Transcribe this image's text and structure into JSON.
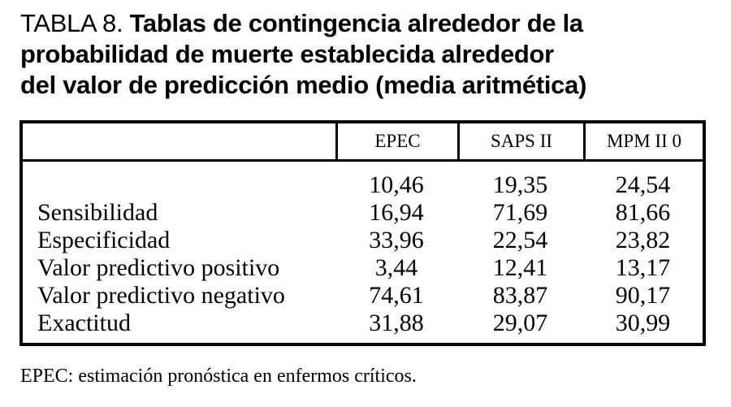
{
  "page": {
    "background": "#ffffff",
    "text_color": "#000000"
  },
  "title": {
    "prefix": "TABLA 8.",
    "line1_bold": "Tablas de contingencia alrededor de la",
    "line2_bold": "probabilidad de muerte establecida alrededor",
    "line3_bold": "del valor de predicción medio (media aritmética)"
  },
  "table": {
    "columns": [
      "",
      "EPEC",
      "SAPS II",
      "MPM II 0"
    ],
    "rows": [
      {
        "label": "",
        "values": [
          "10,46",
          "19,35",
          "24,54"
        ]
      },
      {
        "label": "Sensibilidad",
        "values": [
          "16,94",
          "71,69",
          "81,66"
        ]
      },
      {
        "label": "Especificidad",
        "values": [
          "33,96",
          "22,54",
          "23,82"
        ]
      },
      {
        "label": "Valor predictivo positivo",
        "values": [
          "3,44",
          "12,41",
          "13,17"
        ]
      },
      {
        "label": "Valor predictivo negativo",
        "values": [
          "74,61",
          "83,87",
          "90,17"
        ]
      },
      {
        "label": "Exactitud",
        "values": [
          "31,88",
          "29,07",
          "30,99"
        ]
      }
    ]
  },
  "footnote": "EPEC: estimación pronóstica en enfermos críticos."
}
